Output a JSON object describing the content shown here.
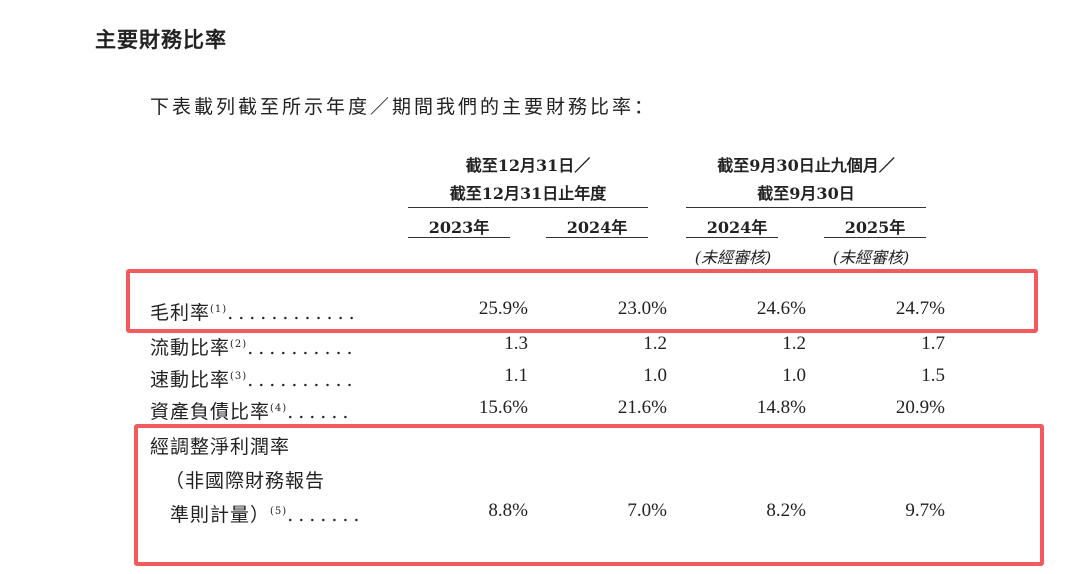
{
  "title": "主要財務比率",
  "intro": "下表載列截至所示年度／期間我們的主要財務比率：",
  "groups": [
    {
      "line1": "截至12月31日／",
      "line2": "截至12月31日止年度"
    },
    {
      "line1": "截至9月30日止九個月／",
      "line2": "截至9月30日"
    }
  ],
  "columns": [
    {
      "year": "2023年",
      "note": ""
    },
    {
      "year": "2024年",
      "note": ""
    },
    {
      "year": "2024年",
      "note": "(未經審核)"
    },
    {
      "year": "2025年",
      "note": "(未經審核)"
    }
  ],
  "rows": [
    {
      "label": "毛利率",
      "sup": "(1)",
      "dots": "............",
      "values": [
        "25.9%",
        "23.0%",
        "24.6%",
        "24.7%"
      ]
    },
    {
      "label": "流動比率",
      "sup": "(2)",
      "dots": "..........",
      "values": [
        "1.3",
        "1.2",
        "1.2",
        "1.7"
      ]
    },
    {
      "label": "速動比率",
      "sup": "(3)",
      "dots": "..........",
      "values": [
        "1.1",
        "1.0",
        "1.0",
        "1.5"
      ]
    },
    {
      "label": "資產負債比率",
      "sup": "(4)",
      "dots": "......",
      "values": [
        "15.6%",
        "21.6%",
        "14.8%",
        "20.9%"
      ]
    },
    {
      "label_line1": "經調整淨利潤率",
      "label_line2": "（非國際財務報告",
      "label_line3": "準則計量）",
      "sup": "(5)",
      "dots": ".......",
      "values": [
        "8.8%",
        "7.0%",
        "8.2%",
        "9.7%"
      ]
    }
  ],
  "highlight_color": "#f25a5e"
}
